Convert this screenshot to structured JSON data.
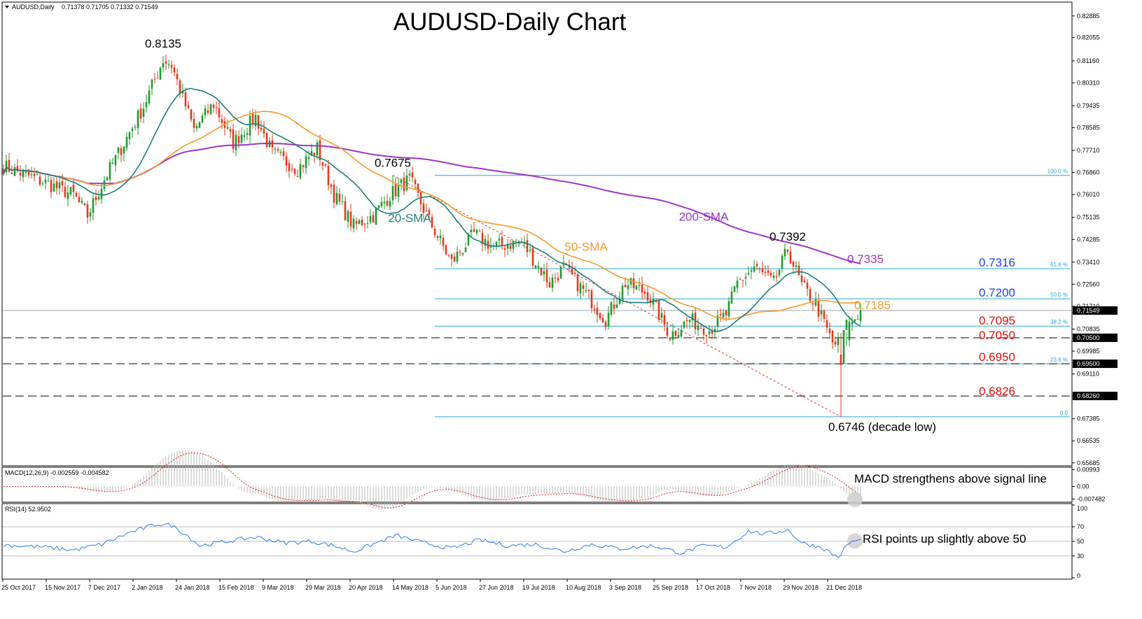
{
  "title": "AUDUSD-Daily Chart",
  "symbol_info": {
    "label": "AUDUSD,Daily",
    "ohlc": "0.71378 0.71705 0.71332 0.71549"
  },
  "colors": {
    "bull": "#1e9a2e",
    "bear": "#e03a1a",
    "sma20": "#1f7e7c",
    "sma50": "#f39a2d",
    "sma200": "#9c35c6",
    "fib": "#29a8d8",
    "resistance_label": "#1f3fe0",
    "support_label": "#e01010",
    "trend": "#e03030",
    "rsi": "#2f7fe0",
    "macd_signal": "#e02020",
    "macd_hist": "#b8b8b8"
  },
  "chart_data": [
    {
      "type": "candlestick",
      "title": "AUDUSD-Daily Chart",
      "ylim": [
        0.6568,
        0.8296
      ],
      "y_ticks": [
        "0.82885",
        "0.82055",
        "0.81160",
        "0.80310",
        "0.79435",
        "0.78585",
        "0.77710",
        "0.76860",
        "0.76010",
        "0.75135",
        "0.74285",
        "0.73410",
        "0.72560",
        "0.71710",
        "0.70835",
        "0.69985",
        "0.69110",
        "0.68260",
        "0.67385",
        "0.66535",
        "0.65685"
      ],
      "x_ticks": [
        "25 Oct 2017",
        "15 Nov 2017",
        "7 Dec 2017",
        "2 Jan 2018",
        "24 Jan 2018",
        "15 Feb 2018",
        "9 Mar 2018",
        "29 Mar 2018",
        "20 Apr 2018",
        "14 May 2018",
        "5 Jun 2018",
        "27 Jun 2018",
        "19 Jul 2018",
        "10 Aug 2018",
        "3 Sep 2018",
        "25 Sep 2018",
        "17 Oct 2018",
        "7 Nov 2018",
        "29 Nov 2018",
        "21 Dec 2018"
      ],
      "price_anchors": [
        [
          0,
          0.771
        ],
        [
          12,
          0.766
        ],
        [
          25,
          0.76
        ],
        [
          30,
          0.752
        ],
        [
          36,
          0.766
        ],
        [
          42,
          0.778
        ],
        [
          50,
          0.794
        ],
        [
          57,
          0.812
        ],
        [
          60,
          0.81
        ],
        [
          68,
          0.785
        ],
        [
          75,
          0.795
        ],
        [
          82,
          0.78
        ],
        [
          90,
          0.79
        ],
        [
          96,
          0.776
        ],
        [
          105,
          0.77
        ],
        [
          112,
          0.778
        ],
        [
          118,
          0.76
        ],
        [
          125,
          0.748
        ],
        [
          132,
          0.752
        ],
        [
          138,
          0.76
        ],
        [
          145,
          0.766
        ],
        [
          152,
          0.75
        ],
        [
          160,
          0.734
        ],
        [
          168,
          0.745
        ],
        [
          175,
          0.74
        ],
        [
          185,
          0.742
        ],
        [
          195,
          0.726
        ],
        [
          200,
          0.732
        ],
        [
          208,
          0.722
        ],
        [
          215,
          0.712
        ],
        [
          222,
          0.726
        ],
        [
          230,
          0.722
        ],
        [
          238,
          0.706
        ],
        [
          245,
          0.712
        ],
        [
          252,
          0.708
        ],
        [
          258,
          0.714
        ],
        [
          262,
          0.726
        ],
        [
          268,
          0.732
        ],
        [
          275,
          0.726
        ],
        [
          280,
          0.739
        ],
        [
          285,
          0.725
        ],
        [
          290,
          0.718
        ],
        [
          296,
          0.703
        ],
        [
          300,
          0.702
        ],
        [
          302,
          0.71
        ],
        [
          306,
          0.7155
        ]
      ],
      "current_price": 0.71549,
      "sma20_last": 0.7095,
      "sma50_last": 0.7185,
      "sma200_last": 0.7335,
      "fib_levels": [
        {
          "pct": "100.0 %",
          "price": 0.7675
        },
        {
          "pct": "61.8 %",
          "price": 0.7316
        },
        {
          "pct": "50.0 %",
          "price": 0.72
        },
        {
          "pct": "38.2 %",
          "price": 0.7095
        },
        {
          "pct": "23.6 %",
          "price": 0.695
        },
        {
          "pct": "0.0",
          "price": 0.6746
        }
      ],
      "dashed_levels": [
        0.705,
        0.695,
        0.6826
      ],
      "axis_highlights": [
        {
          "label": "0.71549",
          "price": 0.71549
        },
        {
          "label": "0.70500",
          "price": 0.705
        },
        {
          "label": "0.69500",
          "price": 0.695
        },
        {
          "label": "0.68260",
          "price": 0.6826
        }
      ],
      "annotations": [
        {
          "text": "0.8135",
          "price": 0.8135,
          "bar": 57
        },
        {
          "text": "0.7675",
          "price": 0.7675,
          "bar": 139
        },
        {
          "text": "0.7392",
          "price": 0.7392,
          "bar": 280
        },
        {
          "text": "0.6746 (decade low)",
          "price": 0.6746,
          "bar": 299
        },
        {
          "text": "20-SMA",
          "price": 0.7495,
          "bar": 145
        },
        {
          "text": "50-SMA",
          "price": 0.7385,
          "bar": 208
        },
        {
          "text": "200-SMA",
          "price": 0.75,
          "bar": 250
        }
      ],
      "level_labels": [
        {
          "text": "0.7335",
          "kind": "sma200"
        },
        {
          "text": "0.7316",
          "kind": "resistance"
        },
        {
          "text": "0.7200",
          "kind": "resistance"
        },
        {
          "text": "0.7185",
          "kind": "sma50"
        },
        {
          "text": "0.7095",
          "kind": "support"
        },
        {
          "text": "0.7050",
          "kind": "support"
        },
        {
          "text": "0.6950",
          "kind": "support"
        },
        {
          "text": "0.6826",
          "kind": "support"
        }
      ]
    },
    {
      "type": "macd",
      "header": "MACD(12,26,9) -0.002559 -0.004582",
      "y_ticks": [
        "0.00993",
        "0.00",
        "-0.007482"
      ],
      "ylim": [
        -0.0085,
        0.0105
      ],
      "annotation": "MACD strengthens above signal line"
    },
    {
      "type": "line",
      "header": "RSI(14) 52.9502",
      "ylim": [
        0,
        100
      ],
      "levels": [
        70,
        50,
        30
      ],
      "y_ticks": [
        "100",
        "70",
        "50",
        "30",
        "0"
      ],
      "rsi_anchors": [
        [
          0,
          45
        ],
        [
          15,
          42
        ],
        [
          25,
          38
        ],
        [
          35,
          46
        ],
        [
          45,
          62
        ],
        [
          55,
          74
        ],
        [
          60,
          72
        ],
        [
          65,
          60
        ],
        [
          70,
          44
        ],
        [
          80,
          50
        ],
        [
          90,
          56
        ],
        [
          100,
          48
        ],
        [
          110,
          50
        ],
        [
          118,
          44
        ],
        [
          125,
          36
        ],
        [
          132,
          46
        ],
        [
          140,
          58
        ],
        [
          150,
          48
        ],
        [
          160,
          40
        ],
        [
          170,
          52
        ],
        [
          180,
          44
        ],
        [
          190,
          46
        ],
        [
          200,
          36
        ],
        [
          210,
          46
        ],
        [
          220,
          40
        ],
        [
          232,
          44
        ],
        [
          242,
          34
        ],
        [
          250,
          44
        ],
        [
          258,
          42
        ],
        [
          266,
          64
        ],
        [
          272,
          60
        ],
        [
          280,
          66
        ],
        [
          285,
          48
        ],
        [
          292,
          42
        ],
        [
          298,
          28
        ],
        [
          302,
          48
        ],
        [
          306,
          53
        ]
      ],
      "annotation": "RSI points up slightly above 50"
    }
  ]
}
